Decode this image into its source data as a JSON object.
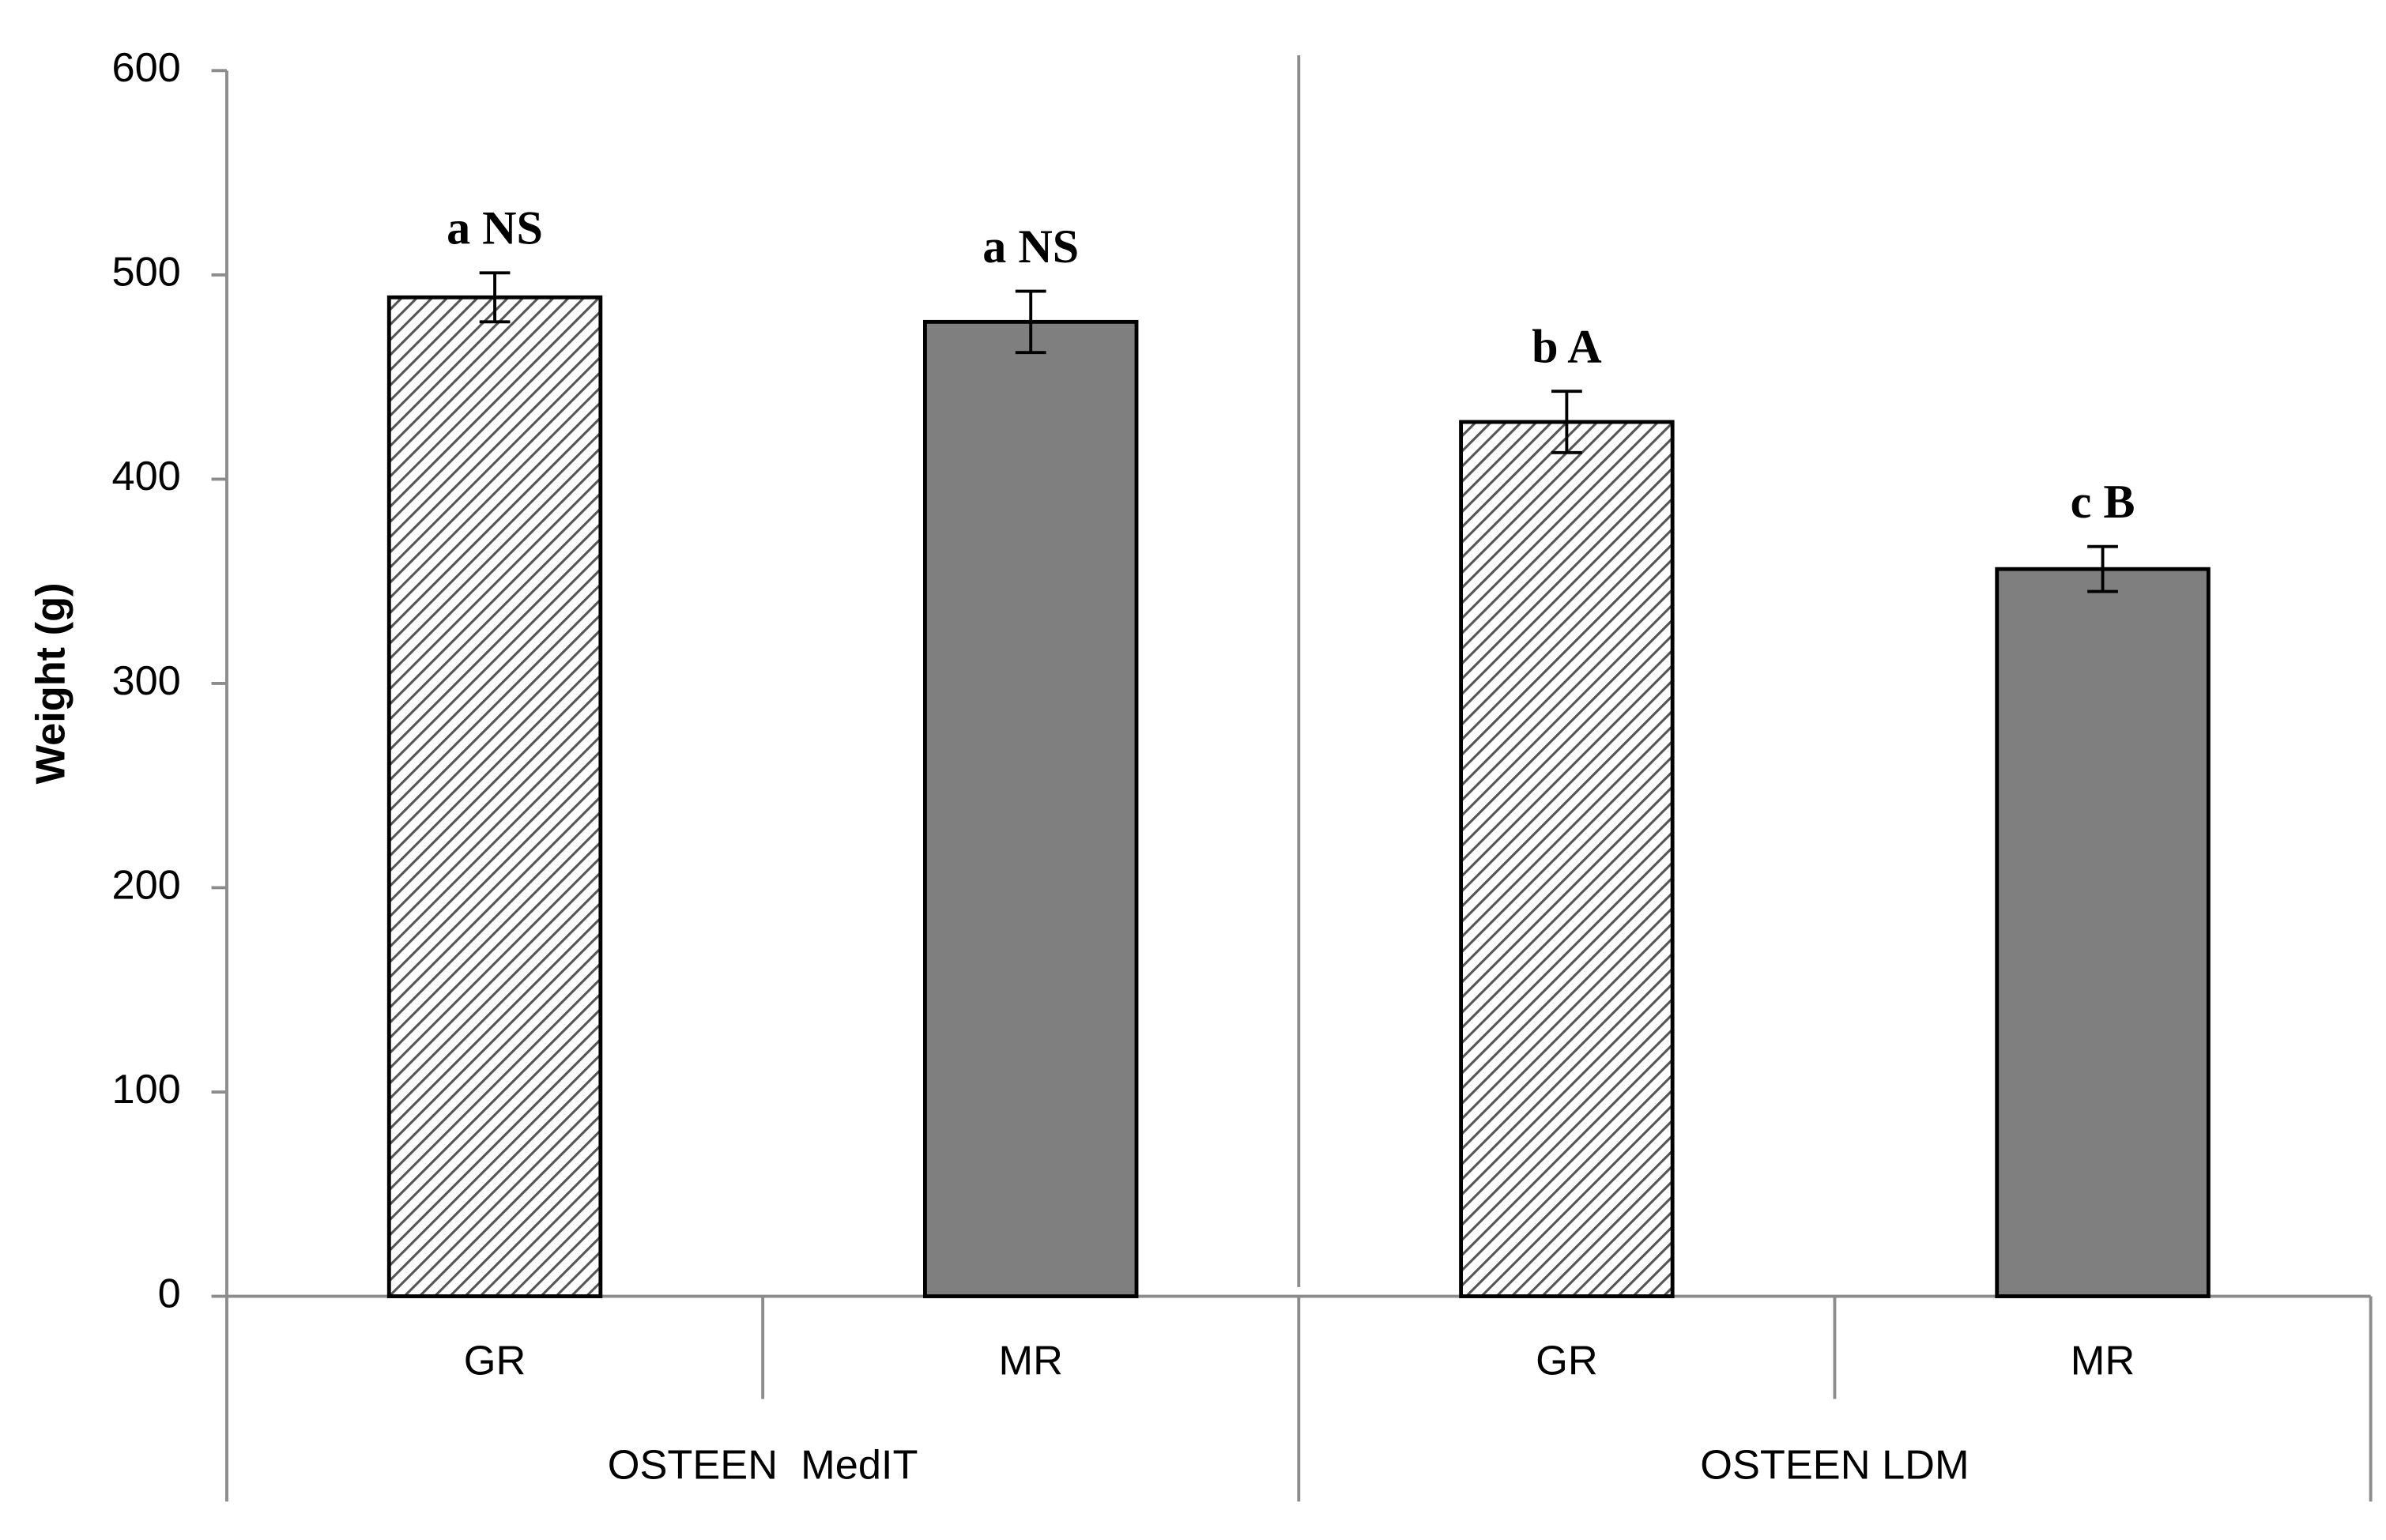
{
  "chart_data": {
    "type": "bar",
    "y_label": "Weight (g)",
    "ylim": [
      0,
      600
    ],
    "yticks": [
      0,
      100,
      200,
      300,
      400,
      500,
      600
    ],
    "fills": [
      "hatch",
      "#7f7f7f"
    ],
    "groups": [
      {
        "name": "OSTEEN  MedIT",
        "categories": [
          "GR",
          "MR"
        ],
        "values": [
          489,
          477
        ],
        "errors": [
          12,
          15
        ],
        "annotations": [
          "a NS",
          "a NS"
        ]
      },
      {
        "name": "OSTEEN LDM",
        "categories": [
          "GR",
          "MR"
        ],
        "values": [
          428,
          356
        ],
        "errors": [
          15,
          11
        ],
        "annotations": [
          "b A",
          "c B"
        ]
      }
    ]
  }
}
